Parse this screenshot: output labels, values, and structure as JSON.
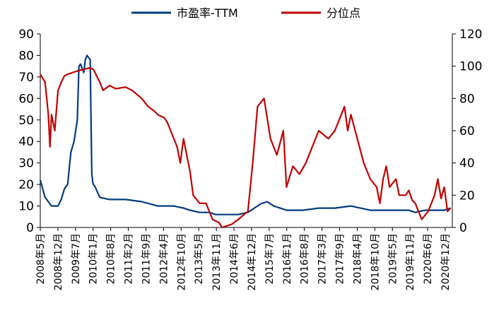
{
  "chart_data": {
    "type": "line",
    "legend_position": "top-center",
    "grid": false,
    "y_left": {
      "ylim": [
        0,
        90
      ],
      "ticks": [
        "0",
        "10",
        "20",
        "30",
        "40",
        "50",
        "60",
        "70",
        "80",
        "90"
      ]
    },
    "y_right": {
      "ylim": [
        0,
        120
      ],
      "ticks": [
        "0",
        "20",
        "40",
        "60",
        "80",
        "100",
        "120"
      ]
    },
    "x_tick_labels": [
      "2008年5月",
      "2008年12月",
      "2009年7月",
      "2010年1月",
      "2010年8月",
      "2011年2月",
      "2011年9月",
      "2012年4月",
      "2012年10月",
      "2013年5月",
      "2013年11月",
      "2014年6月",
      "2014年12月",
      "2015年7月",
      "2016年1月",
      "2016年8月",
      "2017年3月",
      "2017年9月",
      "2018年4月",
      "2018年10月",
      "2019年5月",
      "2019年11月",
      "2020年6月",
      "2020年12月"
    ],
    "series": [
      {
        "name": "市盈率-TTM",
        "color": "#003a80",
        "axis": "left",
        "x": [
          2008.35,
          2008.5,
          2008.7,
          2008.9,
          2009.0,
          2009.1,
          2009.2,
          2009.3,
          2009.4,
          2009.45,
          2009.5,
          2009.55,
          2009.6,
          2009.7,
          2009.75,
          2009.8,
          2009.85,
          2009.9,
          2009.95,
          2009.98,
          2010.0,
          2010.05,
          2010.2,
          2010.5,
          2011.0,
          2011.5,
          2012.0,
          2012.5,
          2012.8,
          2013.0,
          2013.3,
          2013.6,
          2013.8,
          2014.0,
          2014.2,
          2014.5,
          2014.8,
          2015.0,
          2015.2,
          2015.4,
          2015.6,
          2016.0,
          2016.5,
          2017.0,
          2017.5,
          2018.0,
          2018.3,
          2018.6,
          2019.0,
          2019.5,
          2019.8,
          2020.0,
          2020.3,
          2020.6,
          2020.9,
          2021.1
        ],
        "values": [
          22,
          14,
          10,
          10,
          13,
          18,
          20,
          35,
          40,
          45,
          50,
          75,
          76,
          72,
          78,
          80,
          79,
          78,
          25,
          21,
          20,
          19,
          14,
          13,
          13,
          12,
          10,
          10,
          9,
          8,
          7,
          7,
          6,
          6,
          6,
          6,
          7,
          9,
          11,
          12,
          10,
          8,
          8,
          9,
          9,
          10,
          9,
          8,
          8,
          8,
          8,
          7,
          8,
          8,
          8,
          9
        ]
      },
      {
        "name": "分位点",
        "color": "#c00000",
        "axis": "right",
        "x": [
          2008.35,
          2008.5,
          2008.6,
          2008.65,
          2008.7,
          2008.8,
          2008.9,
          2009.0,
          2009.1,
          2009.2,
          2009.5,
          2009.7,
          2009.9,
          2010.0,
          2010.2,
          2010.3,
          2010.5,
          2010.7,
          2011.0,
          2011.2,
          2011.5,
          2011.7,
          2011.9,
          2012.0,
          2012.2,
          2012.3,
          2012.5,
          2012.6,
          2012.7,
          2012.8,
          2012.9,
          2013.0,
          2013.1,
          2013.3,
          2013.5,
          2013.7,
          2013.9,
          2014.0,
          2014.3,
          2014.5,
          2014.8,
          2014.95,
          2015.1,
          2015.3,
          2015.5,
          2015.7,
          2015.9,
          2016.0,
          2016.2,
          2016.4,
          2016.6,
          2016.8,
          2017.0,
          2017.3,
          2017.5,
          2017.7,
          2017.8,
          2017.9,
          2018.0,
          2018.2,
          2018.4,
          2018.6,
          2018.8,
          2018.9,
          2019.0,
          2019.1,
          2019.2,
          2019.4,
          2019.5,
          2019.7,
          2019.8,
          2019.9,
          2020.0,
          2020.2,
          2020.4,
          2020.5,
          2020.6,
          2020.7,
          2020.8,
          2020.9,
          2021.0,
          2021.1
        ],
        "values": [
          95,
          90,
          70,
          50,
          70,
          60,
          85,
          90,
          94,
          95,
          97,
          98,
          99,
          98,
          90,
          85,
          88,
          86,
          87,
          85,
          80,
          75,
          72,
          70,
          68,
          65,
          55,
          50,
          40,
          55,
          45,
          35,
          20,
          15,
          15,
          5,
          3,
          0,
          2,
          5,
          10,
          40,
          75,
          80,
          55,
          45,
          60,
          25,
          38,
          33,
          40,
          50,
          60,
          55,
          60,
          70,
          75,
          60,
          70,
          55,
          40,
          30,
          25,
          15,
          30,
          38,
          25,
          30,
          20,
          20,
          23,
          17,
          15,
          5,
          10,
          15,
          20,
          30,
          18,
          25,
          10,
          12
        ]
      }
    ]
  }
}
